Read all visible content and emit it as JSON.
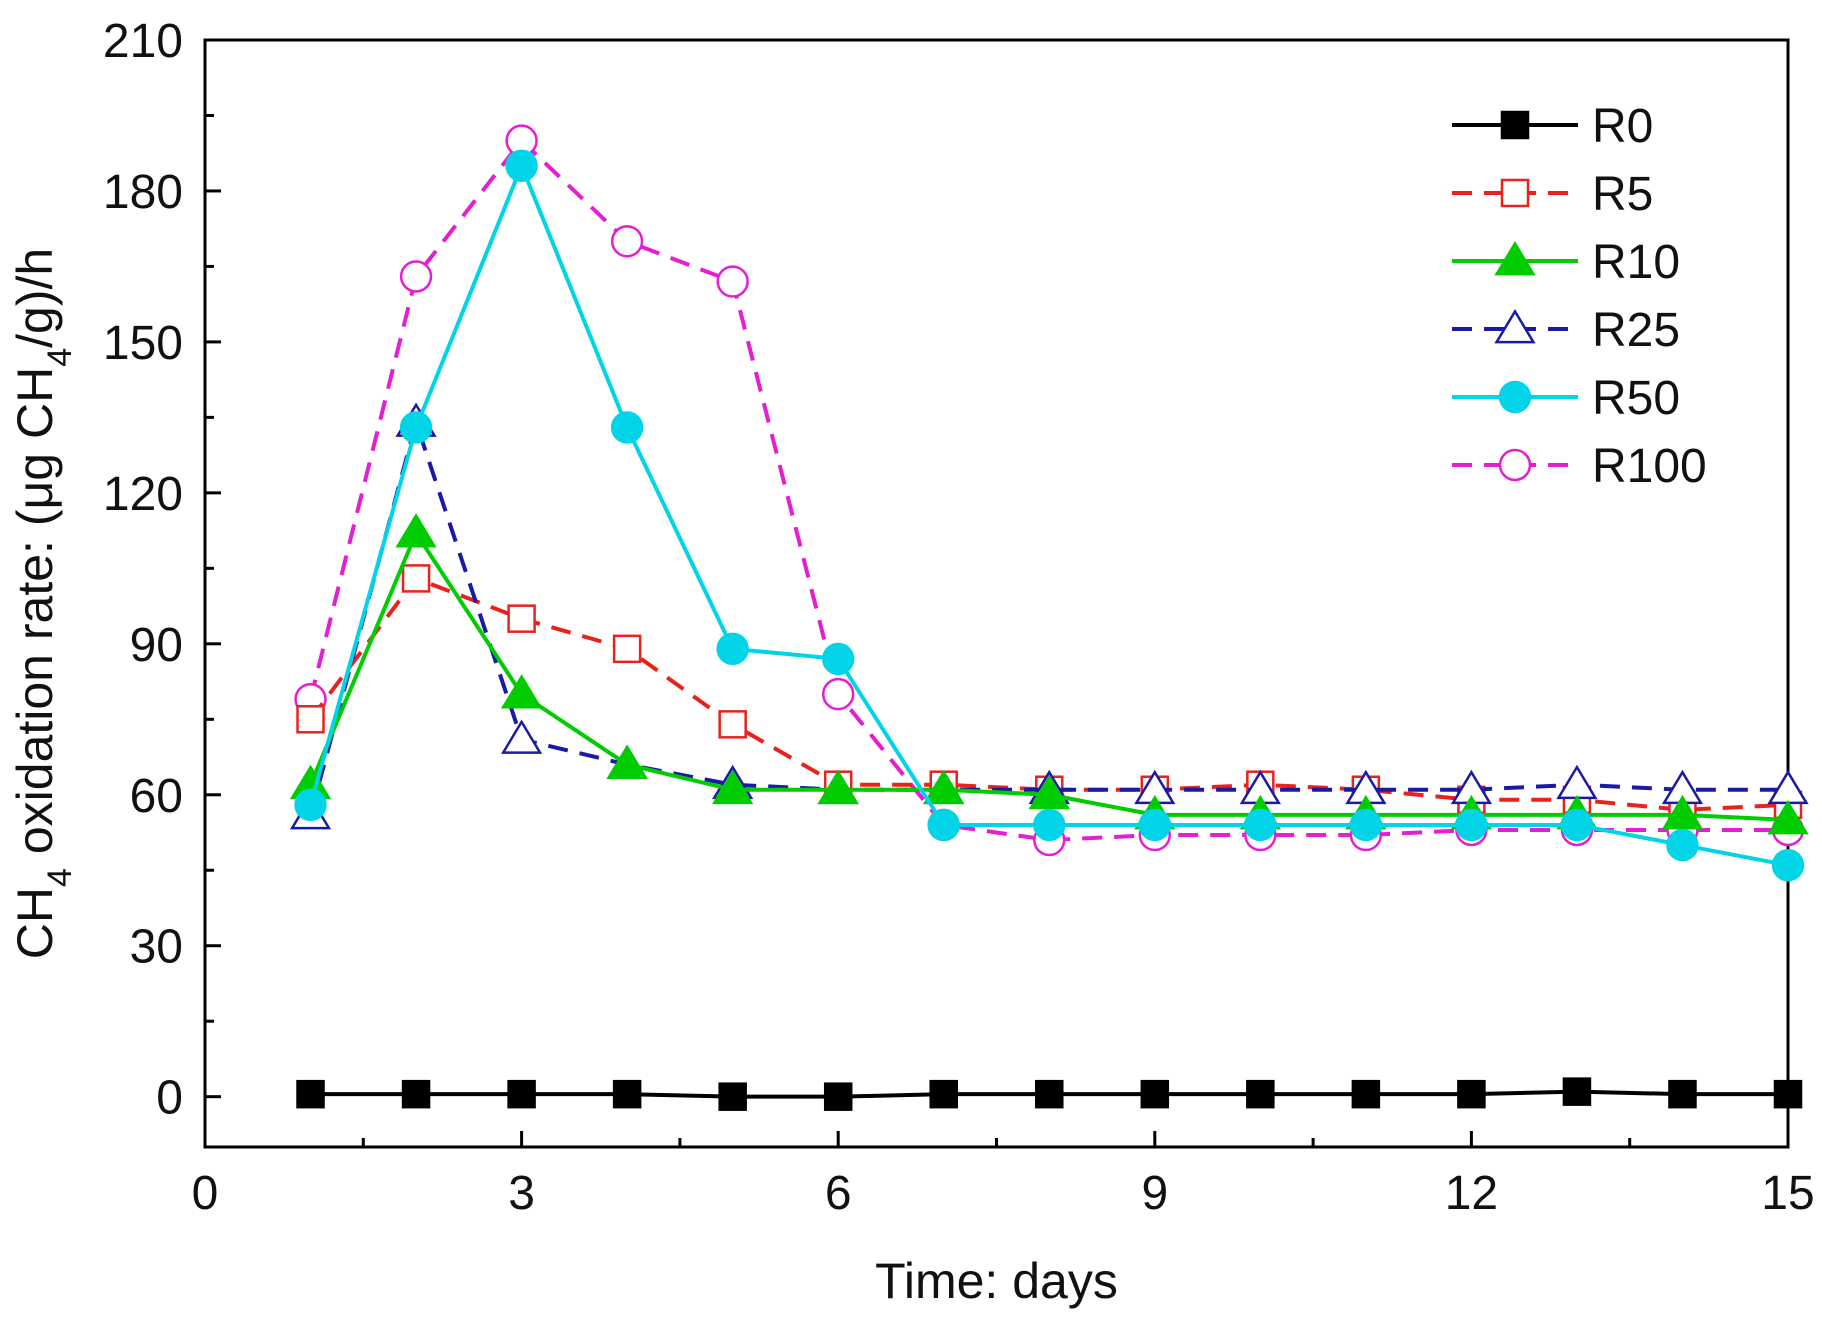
{
  "chart_data": {
    "type": "line",
    "title": "",
    "xlabel": "Time: days",
    "ylabel": {
      "prefix": "CH",
      "sub": "4",
      "middle": " oxidation rate:  (μg CH",
      "sub2": "4",
      "suffix": "/g)/h"
    },
    "xlim": [
      0,
      15
    ],
    "ylim": [
      -10,
      210
    ],
    "xticks": [
      0,
      3,
      6,
      9,
      12,
      15
    ],
    "yticks": [
      0,
      30,
      60,
      90,
      120,
      150,
      180,
      210
    ],
    "grid": false,
    "legend_position": "top-right",
    "x": [
      1,
      2,
      3,
      4,
      5,
      6,
      7,
      8,
      9,
      10,
      11,
      12,
      13,
      14,
      15
    ],
    "series": [
      {
        "name": "R0",
        "color": "#000000",
        "dash": "solid",
        "marker": "square",
        "filled": true,
        "values": [
          0.5,
          0.5,
          0.5,
          0.5,
          0,
          0,
          0.5,
          0.5,
          0.5,
          0.5,
          0.5,
          0.5,
          1,
          0.5,
          0.5
        ]
      },
      {
        "name": "R5",
        "color": "#e8231c",
        "dash": "dashed",
        "marker": "square",
        "filled": false,
        "values": [
          75,
          103,
          95,
          89,
          74,
          62,
          62,
          61,
          61,
          62,
          61,
          59,
          59,
          57,
          58
        ]
      },
      {
        "name": "R10",
        "color": "#00cc00",
        "dash": "solid",
        "marker": "triangle",
        "filled": true,
        "values": [
          62,
          112,
          80,
          66,
          61,
          61,
          61,
          60,
          56,
          56,
          56,
          56,
          56,
          56,
          55
        ]
      },
      {
        "name": "R25",
        "color": "#1a1aa6",
        "dash": "dashed",
        "marker": "triangle",
        "filled": false,
        "values": [
          56,
          134,
          71,
          66,
          62,
          61,
          61,
          61,
          61,
          61,
          61,
          61,
          62,
          61,
          61
        ]
      },
      {
        "name": "R50",
        "color": "#00d4e6",
        "dash": "solid",
        "marker": "circle",
        "filled": true,
        "values": [
          58,
          133,
          185,
          133,
          89,
          87,
          54,
          54,
          54,
          54,
          54,
          54,
          54,
          50,
          46
        ]
      },
      {
        "name": "R100",
        "color": "#e61ed2",
        "dash": "dashed",
        "marker": "circle",
        "filled": false,
        "values": [
          79,
          163,
          190,
          170,
          162,
          80,
          54,
          51,
          52,
          52,
          52,
          53,
          53,
          53,
          53
        ]
      }
    ]
  }
}
